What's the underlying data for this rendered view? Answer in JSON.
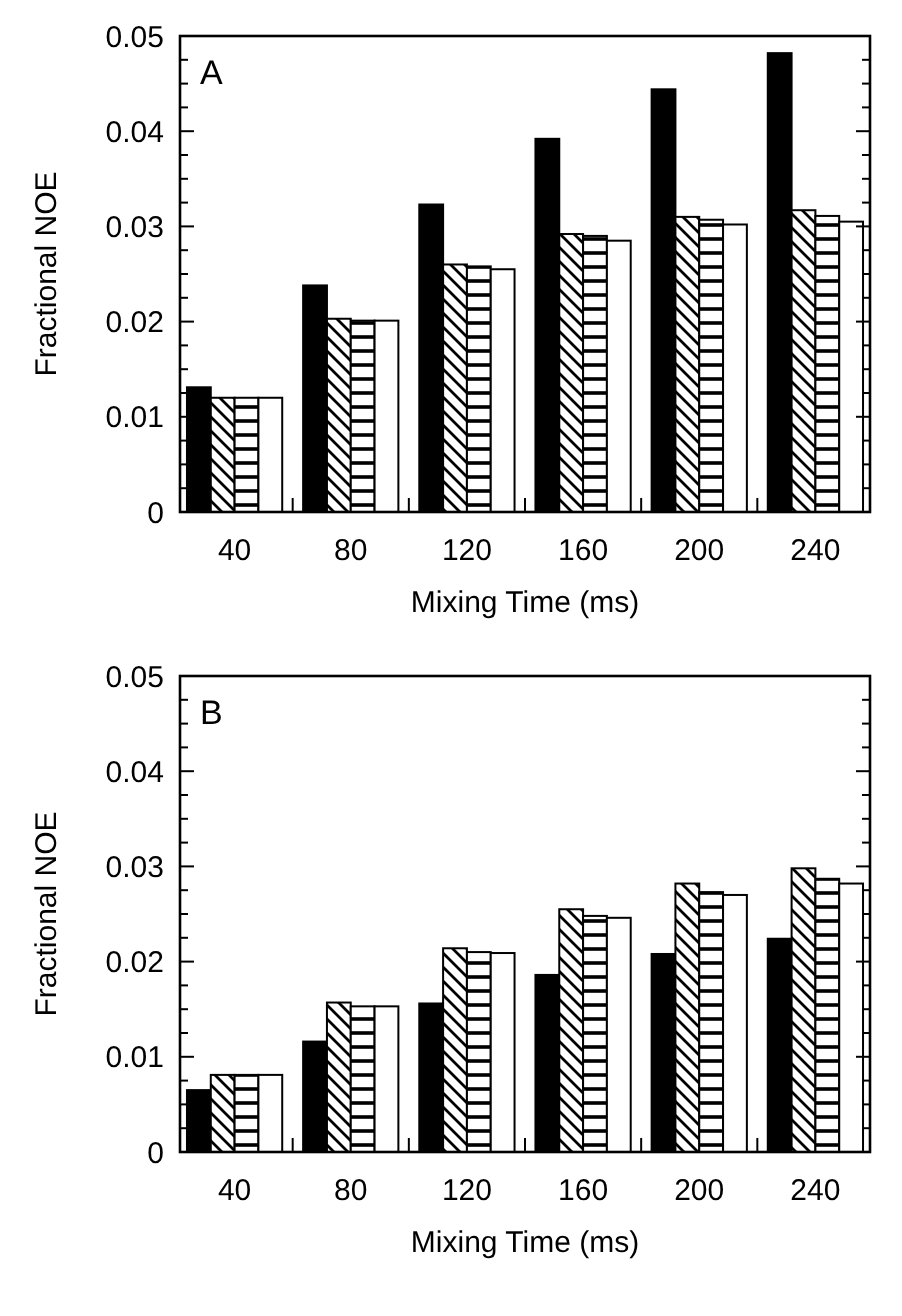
{
  "chart_data": [
    {
      "type": "bar",
      "categories": [
        "40",
        "80",
        "120",
        "160",
        "200",
        "240"
      ],
      "xlabel": "Mixing Time (ms)",
      "ylabel": "Fractional NOE",
      "annotations": [
        "A"
      ],
      "ylim": [
        0,
        0.05
      ],
      "yticks": [
        0,
        {
          "value": 0.0025,
          "label": null
        },
        {
          "value": 0.005,
          "label": null
        },
        {
          "value": 0.0075,
          "label": null
        },
        0.01,
        {
          "value": 0.0125,
          "label": null
        },
        {
          "value": 0.015,
          "label": null
        },
        {
          "value": 0.0175,
          "label": null
        },
        0.02,
        {
          "value": 0.0225,
          "label": null
        },
        {
          "value": 0.025,
          "label": null
        },
        {
          "value": 0.0275,
          "label": null
        },
        0.03,
        {
          "value": 0.0325,
          "label": null
        },
        {
          "value": 0.035,
          "label": null
        },
        {
          "value": 0.0375,
          "label": null
        },
        0.04,
        {
          "value": 0.0425,
          "label": null
        },
        {
          "value": 0.045,
          "label": null
        },
        {
          "value": 0.0475,
          "label": null
        },
        0.05
      ],
      "grid": false,
      "series": [
        {
          "color": "#000000",
          "values": [
            0.0131,
            0.0238,
            0.0323,
            0.0392,
            0.0444,
            0.0482
          ]
        },
        {
          "color": "#000000",
          "values": [
            0.012,
            0.0203,
            0.026,
            0.0292,
            0.031,
            0.0317
          ]
        },
        {
          "color": "#000000",
          "values": [
            0.012,
            0.0201,
            0.0258,
            0.029,
            0.0307,
            0.0311
          ]
        },
        {
          "color": "#ffffff",
          "values": [
            0.012,
            0.0201,
            0.0255,
            0.0285,
            0.0302,
            0.0305
          ]
        }
      ]
    },
    {
      "type": "bar",
      "categories": [
        "40",
        "80",
        "120",
        "160",
        "200",
        "240"
      ],
      "xlabel": "Mixing Time (ms)",
      "ylabel": "Fractional NOE",
      "annotations": [
        "B"
      ],
      "ylim": [
        0,
        0.05
      ],
      "yticks": [
        0,
        {
          "value": 0.0025,
          "label": null
        },
        {
          "value": 0.005,
          "label": null
        },
        {
          "value": 0.0075,
          "label": null
        },
        0.01,
        {
          "value": 0.0125,
          "label": null
        },
        {
          "value": 0.015,
          "label": null
        },
        {
          "value": 0.0175,
          "label": null
        },
        0.02,
        {
          "value": 0.0225,
          "label": null
        },
        {
          "value": 0.025,
          "label": null
        },
        {
          "value": 0.0275,
          "label": null
        },
        0.03,
        {
          "value": 0.0325,
          "label": null
        },
        {
          "value": 0.035,
          "label": null
        },
        {
          "value": 0.0375,
          "label": null
        },
        0.04,
        {
          "value": 0.0425,
          "label": null
        },
        {
          "value": 0.045,
          "label": null
        },
        {
          "value": 0.0475,
          "label": null
        },
        0.05
      ],
      "grid": false,
      "series": [
        {
          "color": "#000000",
          "values": [
            0.0065,
            0.0116,
            0.0156,
            0.0186,
            0.0208,
            0.0224
          ]
        },
        {
          "color": "#000000",
          "values": [
            0.0081,
            0.0157,
            0.0214,
            0.0255,
            0.0282,
            0.0298
          ]
        },
        {
          "color": "#000000",
          "values": [
            0.0081,
            0.0153,
            0.021,
            0.0248,
            0.0273,
            0.0287
          ]
        },
        {
          "color": "#ffffff",
          "values": [
            0.0081,
            0.0153,
            0.0209,
            0.0246,
            0.027,
            0.0282
          ]
        }
      ]
    }
  ]
}
